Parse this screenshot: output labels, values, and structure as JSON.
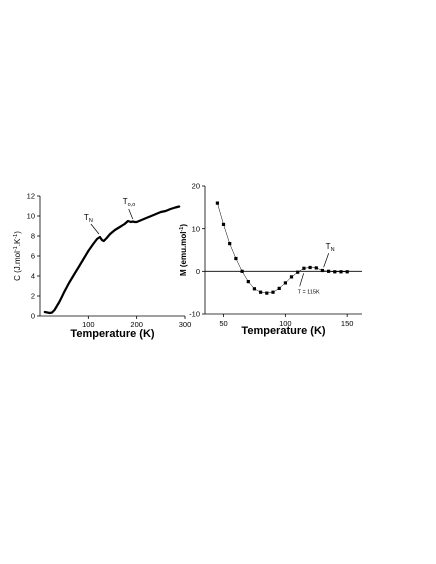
{
  "chart_data": [
    {
      "type": "line",
      "xlabel": "Temperature (K)",
      "ylabel": {
        "main": "C (J.mol",
        "sup1": "-1",
        "mid": ".K",
        "sup2": "-1",
        "end": ")"
      },
      "xlim": [
        0,
        300
      ],
      "ylim": [
        0,
        12
      ],
      "xticks": [
        100,
        200,
        300
      ],
      "yticks": [
        0,
        2,
        4,
        6,
        8,
        10,
        12
      ],
      "series": [
        {
          "x": [
            10,
            15,
            20,
            25,
            30,
            35,
            40,
            45,
            50,
            60,
            70,
            80,
            90,
            100,
            110,
            118,
            124,
            128,
            132,
            138,
            145,
            155,
            165,
            175,
            182,
            188,
            192,
            196,
            200,
            205,
            210,
            220,
            230,
            240,
            250,
            260,
            270,
            280,
            288
          ],
          "y": [
            0.4,
            0.35,
            0.3,
            0.35,
            0.6,
            1.0,
            1.4,
            1.9,
            2.4,
            3.3,
            4.1,
            4.9,
            5.7,
            6.5,
            7.2,
            7.7,
            7.9,
            7.6,
            7.5,
            7.8,
            8.2,
            8.6,
            8.9,
            9.2,
            9.5,
            9.4,
            9.45,
            9.4,
            9.4,
            9.5,
            9.6,
            9.8,
            10.0,
            10.2,
            10.4,
            10.5,
            10.7,
            10.85,
            10.95
          ]
        }
      ],
      "annotations": [
        {
          "label": "T",
          "sub": "N",
          "x": 124,
          "y": 7.9
        },
        {
          "label": "T",
          "sub": "o,o",
          "x": 196,
          "y": 9.4
        }
      ]
    },
    {
      "type": "line",
      "xlabel": "Temperature (K)",
      "ylabel": {
        "main": "M (emu.mol",
        "sup1": "-1",
        "end": ")"
      },
      "xlim": [
        35,
        162
      ],
      "ylim": [
        -10,
        20
      ],
      "xticks": [
        50,
        100,
        150
      ],
      "yticks": [
        -10,
        0,
        10,
        20
      ],
      "series": [
        {
          "x": [
            45,
            50,
            55,
            60,
            65,
            70,
            75,
            80,
            85,
            90,
            95,
            100,
            105,
            110,
            115,
            120,
            125,
            130,
            135,
            140,
            145,
            150
          ],
          "y": [
            16,
            11,
            6.5,
            3,
            0,
            -2.4,
            -4.1,
            -4.9,
            -5.1,
            -4.9,
            -4.0,
            -2.7,
            -1.3,
            -0.2,
            0.7,
            0.9,
            0.8,
            0.2,
            0,
            -0.1,
            -0.1,
            -0.1
          ]
        }
      ],
      "annotations": [
        {
          "label": "T",
          "sub": "N",
          "x": 131,
          "y": 0.5
        },
        {
          "label": "T = 115K",
          "x": 114,
          "y": 0
        }
      ]
    }
  ]
}
